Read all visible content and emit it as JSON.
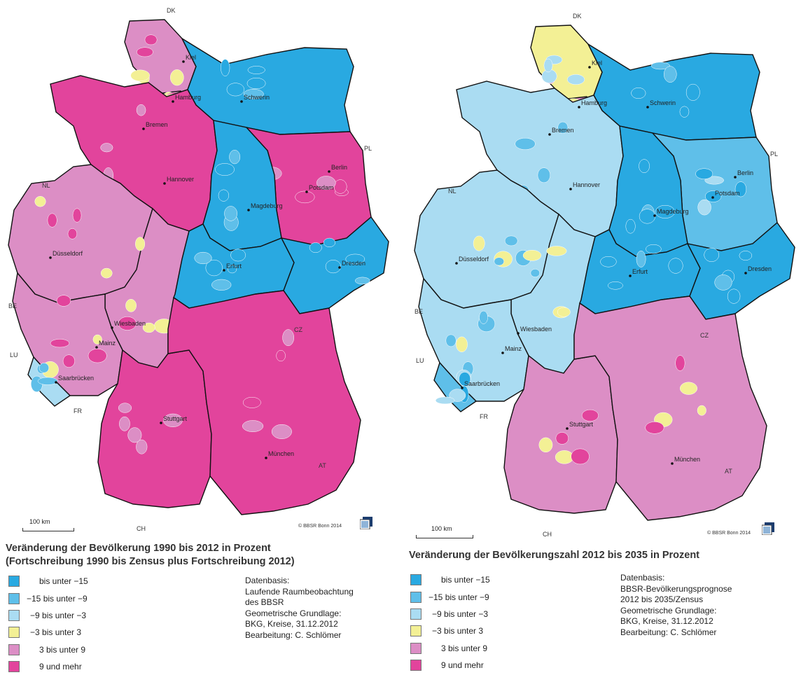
{
  "legend_colors": [
    "#29a9e1",
    "#5fbfe9",
    "#aadcf2",
    "#f3f095",
    "#dc8ec5",
    "#e2449c"
  ],
  "border_color": "#111111",
  "maps": [
    {
      "title_line1": "Veränderung der Bevölkerung 1990 bis 2012 in Prozent",
      "title_line2": "(Fortschreibung 1990 bis Zensus plus Fortschreibung 2012)",
      "legend": [
        "bis unter −15",
        "−15 bis unter −9",
        "−9 bis unter −3",
        "−3 bis unter 3",
        "3 bis unter 9",
        "9 und mehr"
      ],
      "source": [
        "Datenbasis:",
        "Laufende Raumbeobachtung",
        "des BBSR",
        "Geometrische Grundlage:",
        "BKG, Kreise, 31.12.2012",
        "Bearbeitung: C. Schlömer"
      ],
      "scale_label": "100 km",
      "copyright": "© BBSR Bonn 2014",
      "countries": [
        "DK",
        "PL",
        "NL",
        "BE",
        "LU",
        "FR",
        "CH",
        "AT",
        "CZ"
      ],
      "cities": [
        "Kiel",
        "Hamburg",
        "Bremen",
        "Schwerin",
        "Berlin",
        "Potsdam",
        "Hannover",
        "Magdeburg",
        "Düsseldorf",
        "Erfurt",
        "Dresden",
        "Wiesbaden",
        "Mainz",
        "Saarbrücken",
        "Stuttgart",
        "München"
      ],
      "state_shades": {
        "SH": 4,
        "HH": 4,
        "MV": 0,
        "HB": 5,
        "NI": 5,
        "BE": 2,
        "BB": 5,
        "ST": 0,
        "NW": 4,
        "HE": 4,
        "TH": 0,
        "SN": 0,
        "RP": 4,
        "SL": 2,
        "BW": 5,
        "BY": 5
      }
    },
    {
      "title_line1": "Veränderung der Bevölkerungszahl 2012 bis 2035 in Prozent",
      "title_line2": "",
      "legend": [
        "bis unter −15",
        "−15 bis unter −9",
        "−9 bis unter −3",
        "−3 bis unter 3",
        "3 bis unter 9",
        "9 und mehr"
      ],
      "source": [
        "Datenbasis:",
        "BBSR-Bevölkerungsprognose",
        "2012 bis 2035/Zensus",
        "Geometrische Grundlage:",
        "BKG, Kreise, 31.12.2012",
        "Bearbeitung: C. Schlömer"
      ],
      "scale_label": "100 km",
      "copyright": "© BBSR Bonn 2014",
      "countries": [
        "DK",
        "PL",
        "NL",
        "BE",
        "LU",
        "FR",
        "CH",
        "AT",
        "CZ"
      ],
      "cities": [
        "Kiel",
        "Hamburg",
        "Bremen",
        "Schwerin",
        "Berlin",
        "Potsdam",
        "Hannover",
        "Magdeburg",
        "Düsseldorf",
        "Erfurt",
        "Dresden",
        "Wiesbaden",
        "Mainz",
        "Saarbrücken",
        "Stuttgart",
        "München"
      ],
      "state_shades": {
        "SH": 3,
        "HH": 4,
        "MV": 0,
        "HB": 3,
        "NI": 2,
        "BE": 4,
        "BB": 1,
        "ST": 0,
        "NW": 2,
        "HE": 2,
        "TH": 0,
        "SN": 0,
        "RP": 2,
        "SL": 1,
        "BW": 4,
        "BY": 4
      }
    }
  ]
}
